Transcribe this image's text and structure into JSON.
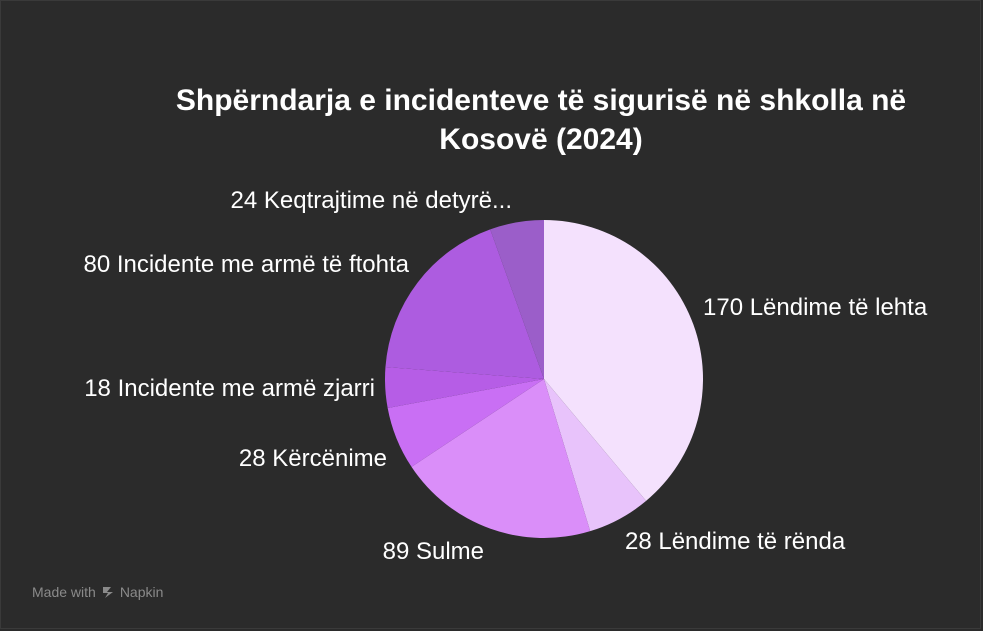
{
  "chart_data": {
    "type": "pie",
    "title": "Shpërndarja e incidenteve të sigurisë në shkolla në Kosovë (2024)",
    "slices": [
      {
        "label": "170 Lëndime të lehta",
        "value": 170,
        "color": "#f4e1fd"
      },
      {
        "label": "28 Lëndime të rënda",
        "value": 28,
        "color": "#e8c3fb"
      },
      {
        "label": "89 Sulme",
        "value": 89,
        "color": "#da8ef9"
      },
      {
        "label": "28 Kërcënime",
        "value": 28,
        "color": "#c96ff4"
      },
      {
        "label": "18 Incidente me armë zjarri",
        "value": 18,
        "color": "#b65de6"
      },
      {
        "label": "80 Incidente me armë të ftohta",
        "value": 80,
        "color": "#ad5ce0"
      },
      {
        "label": "24 Keqtrajtime në detyrë...",
        "value": 24,
        "color": "#9b5ec9"
      }
    ],
    "start": "12 o'clock",
    "direction": "clockwise"
  },
  "footer": {
    "made_with": "Made with",
    "brand": "Napkin",
    "brand_icon": "napkin-logo-icon"
  }
}
